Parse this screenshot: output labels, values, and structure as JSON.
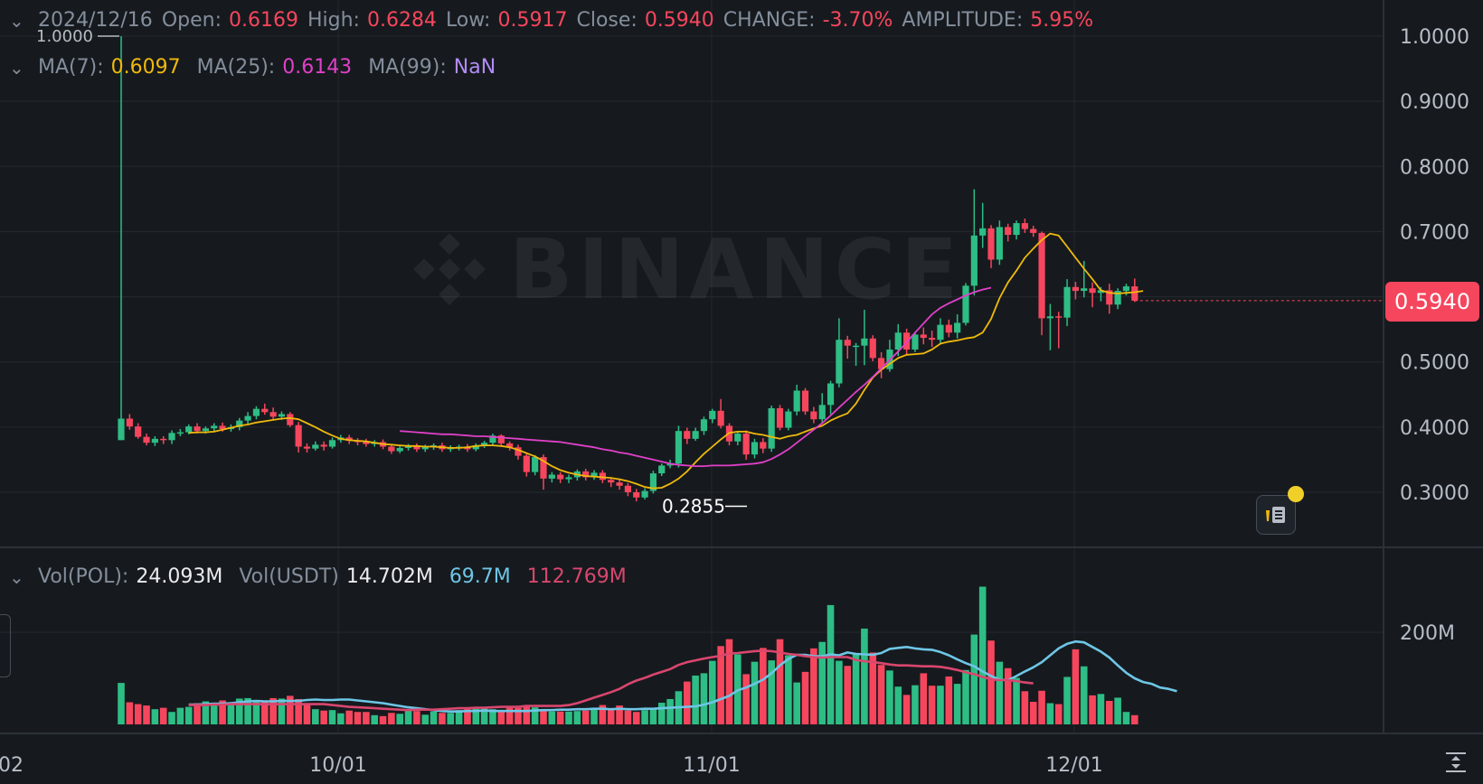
{
  "legend_top": {
    "date": "2024/12/16",
    "open_label": "Open:",
    "open": "0.6169",
    "high_label": "High:",
    "high": "0.6284",
    "low_label": "Low:",
    "low": "0.5917",
    "close_label": "Close:",
    "close": "0.5940",
    "change_label": "CHANGE:",
    "change": "-3.70%",
    "amplitude_label": "AMPLITUDE:",
    "amplitude": "5.95%"
  },
  "legend_ma": {
    "ma7_label": "MA(7):",
    "ma7": "0.6097",
    "ma25_label": "MA(25):",
    "ma25": "0.6143",
    "ma99_label": "MA(99):",
    "ma99": "NaN"
  },
  "legend_vol": {
    "vol_pol_label": "Vol(POL):",
    "vol_pol": "24.093M",
    "vol_usdt_label": "Vol(USDT)",
    "vol_usdt": "14.702M",
    "ma_vol_short": "69.7M",
    "ma_vol_long": "112.769M"
  },
  "current_price_tag": "0.5940",
  "watermark": "BINANCE",
  "colors": {
    "background": "#161a1e",
    "up": "#2ebd85",
    "down": "#f6465d",
    "ma7": "#f0b90b",
    "ma25": "#e040c8",
    "ma99": "#b28bf5",
    "vol_ma_short": "#6ec6e6",
    "vol_ma_long": "#d9466e",
    "grid": "#242830",
    "axis_text": "#b7bdc6"
  },
  "icons": [
    "chevron-down-icon",
    "note-icon",
    "expand-icon"
  ],
  "chart_data": {
    "type": "candlestick",
    "x_ticks": [
      "02",
      "10/01",
      "11/01",
      "12/01"
    ],
    "y_ticks": [
      "1.0000",
      "0.9000",
      "0.8000",
      "0.7000",
      "0.5000",
      "0.4000",
      "0.3000"
    ],
    "vol_ticks": [
      "200M"
    ],
    "ylim": [
      0.22,
      1.05
    ],
    "vol_max": 300,
    "annotations": {
      "max_label": "1.0000",
      "min_label": "0.2855"
    },
    "candles": [
      [
        0.38,
        0.413,
        1.0,
        0.38
      ],
      [
        0.413,
        0.401,
        0.42,
        0.396
      ],
      [
        0.401,
        0.385,
        0.406,
        0.382
      ],
      [
        0.385,
        0.376,
        0.39,
        0.372
      ],
      [
        0.376,
        0.382,
        0.386,
        0.371
      ],
      [
        0.382,
        0.38,
        0.386,
        0.374
      ],
      [
        0.38,
        0.391,
        0.395,
        0.374
      ],
      [
        0.391,
        0.392,
        0.397,
        0.386
      ],
      [
        0.392,
        0.401,
        0.404,
        0.389
      ],
      [
        0.401,
        0.394,
        0.406,
        0.39
      ],
      [
        0.394,
        0.398,
        0.401,
        0.39
      ],
      [
        0.398,
        0.402,
        0.406,
        0.392
      ],
      [
        0.402,
        0.397,
        0.407,
        0.393
      ],
      [
        0.397,
        0.4,
        0.404,
        0.393
      ],
      [
        0.4,
        0.41,
        0.414,
        0.395
      ],
      [
        0.41,
        0.417,
        0.423,
        0.405
      ],
      [
        0.417,
        0.428,
        0.432,
        0.412
      ],
      [
        0.428,
        0.423,
        0.436,
        0.419
      ],
      [
        0.423,
        0.416,
        0.43,
        0.411
      ],
      [
        0.416,
        0.42,
        0.424,
        0.411
      ],
      [
        0.42,
        0.403,
        0.423,
        0.4
      ],
      [
        0.403,
        0.37,
        0.408,
        0.361
      ],
      [
        0.37,
        0.367,
        0.375,
        0.361
      ],
      [
        0.367,
        0.373,
        0.378,
        0.364
      ],
      [
        0.373,
        0.37,
        0.378,
        0.364
      ],
      [
        0.37,
        0.38,
        0.384,
        0.367
      ],
      [
        0.38,
        0.384,
        0.388,
        0.376
      ],
      [
        0.384,
        0.379,
        0.388,
        0.374
      ],
      [
        0.379,
        0.378,
        0.383,
        0.372
      ],
      [
        0.378,
        0.374,
        0.382,
        0.37
      ],
      [
        0.374,
        0.377,
        0.38,
        0.37
      ],
      [
        0.377,
        0.37,
        0.381,
        0.366
      ],
      [
        0.37,
        0.363,
        0.374,
        0.359
      ],
      [
        0.363,
        0.368,
        0.372,
        0.36
      ],
      [
        0.368,
        0.371,
        0.374,
        0.364
      ],
      [
        0.371,
        0.366,
        0.375,
        0.362
      ],
      [
        0.366,
        0.37,
        0.373,
        0.362
      ],
      [
        0.37,
        0.372,
        0.375,
        0.365
      ],
      [
        0.372,
        0.366,
        0.376,
        0.362
      ],
      [
        0.366,
        0.369,
        0.372,
        0.362
      ],
      [
        0.369,
        0.37,
        0.373,
        0.364
      ],
      [
        0.37,
        0.366,
        0.374,
        0.362
      ],
      [
        0.366,
        0.372,
        0.375,
        0.363
      ],
      [
        0.372,
        0.376,
        0.379,
        0.368
      ],
      [
        0.376,
        0.387,
        0.39,
        0.372
      ],
      [
        0.387,
        0.375,
        0.389,
        0.37
      ],
      [
        0.375,
        0.369,
        0.378,
        0.364
      ],
      [
        0.369,
        0.356,
        0.373,
        0.35
      ],
      [
        0.356,
        0.331,
        0.36,
        0.324
      ],
      [
        0.331,
        0.354,
        0.357,
        0.326
      ],
      [
        0.354,
        0.321,
        0.358,
        0.304
      ],
      [
        0.321,
        0.327,
        0.331,
        0.315
      ],
      [
        0.327,
        0.32,
        0.331,
        0.314
      ],
      [
        0.32,
        0.323,
        0.327,
        0.314
      ],
      [
        0.323,
        0.332,
        0.335,
        0.318
      ],
      [
        0.332,
        0.323,
        0.336,
        0.318
      ],
      [
        0.323,
        0.33,
        0.334,
        0.319
      ],
      [
        0.33,
        0.319,
        0.334,
        0.314
      ],
      [
        0.319,
        0.315,
        0.323,
        0.308
      ],
      [
        0.315,
        0.31,
        0.319,
        0.304
      ],
      [
        0.31,
        0.3,
        0.314,
        0.294
      ],
      [
        0.3,
        0.292,
        0.305,
        0.286
      ],
      [
        0.292,
        0.302,
        0.306,
        0.289
      ],
      [
        0.302,
        0.329,
        0.333,
        0.298
      ],
      [
        0.329,
        0.341,
        0.344,
        0.325
      ],
      [
        0.341,
        0.344,
        0.35,
        0.337
      ],
      [
        0.344,
        0.394,
        0.402,
        0.338
      ],
      [
        0.394,
        0.382,
        0.399,
        0.374
      ],
      [
        0.382,
        0.394,
        0.399,
        0.379
      ],
      [
        0.394,
        0.412,
        0.416,
        0.388
      ],
      [
        0.412,
        0.425,
        0.428,
        0.406
      ],
      [
        0.425,
        0.402,
        0.443,
        0.398
      ],
      [
        0.402,
        0.378,
        0.406,
        0.372
      ],
      [
        0.378,
        0.39,
        0.394,
        0.372
      ],
      [
        0.39,
        0.358,
        0.395,
        0.35
      ],
      [
        0.358,
        0.377,
        0.382,
        0.352
      ],
      [
        0.377,
        0.367,
        0.383,
        0.36
      ],
      [
        0.367,
        0.429,
        0.433,
        0.362
      ],
      [
        0.429,
        0.399,
        0.434,
        0.395
      ],
      [
        0.399,
        0.424,
        0.428,
        0.395
      ],
      [
        0.424,
        0.456,
        0.465,
        0.418
      ],
      [
        0.456,
        0.424,
        0.46,
        0.419
      ],
      [
        0.424,
        0.412,
        0.431,
        0.406
      ],
      [
        0.412,
        0.434,
        0.452,
        0.407
      ],
      [
        0.434,
        0.467,
        0.471,
        0.42
      ],
      [
        0.467,
        0.534,
        0.567,
        0.461
      ],
      [
        0.534,
        0.525,
        0.54,
        0.505
      ],
      [
        0.525,
        0.525,
        0.529,
        0.494
      ],
      [
        0.525,
        0.536,
        0.58,
        0.495
      ],
      [
        0.536,
        0.506,
        0.541,
        0.501
      ],
      [
        0.506,
        0.489,
        0.515,
        0.475
      ],
      [
        0.489,
        0.519,
        0.534,
        0.485
      ],
      [
        0.519,
        0.545,
        0.558,
        0.509
      ],
      [
        0.545,
        0.519,
        0.551,
        0.51
      ],
      [
        0.519,
        0.542,
        0.546,
        0.515
      ],
      [
        0.542,
        0.537,
        0.553,
        0.527
      ],
      [
        0.537,
        0.534,
        0.548,
        0.523
      ],
      [
        0.534,
        0.557,
        0.567,
        0.529
      ],
      [
        0.557,
        0.545,
        0.565,
        0.538
      ],
      [
        0.545,
        0.56,
        0.573,
        0.536
      ],
      [
        0.56,
        0.617,
        0.621,
        0.556
      ],
      [
        0.617,
        0.694,
        0.765,
        0.602
      ],
      [
        0.694,
        0.705,
        0.744,
        0.675
      ],
      [
        0.705,
        0.657,
        0.71,
        0.644
      ],
      [
        0.657,
        0.707,
        0.717,
        0.649
      ],
      [
        0.707,
        0.695,
        0.712,
        0.685
      ],
      [
        0.695,
        0.713,
        0.717,
        0.688
      ],
      [
        0.713,
        0.704,
        0.72,
        0.698
      ],
      [
        0.704,
        0.698,
        0.709,
        0.692
      ],
      [
        0.698,
        0.567,
        0.7,
        0.541
      ],
      [
        0.567,
        0.57,
        0.589,
        0.518
      ],
      [
        0.57,
        0.568,
        0.577,
        0.521
      ],
      [
        0.568,
        0.615,
        0.627,
        0.555
      ],
      [
        0.615,
        0.609,
        0.623,
        0.596
      ],
      [
        0.609,
        0.613,
        0.655,
        0.599
      ],
      [
        0.613,
        0.606,
        0.622,
        0.584
      ],
      [
        0.606,
        0.61,
        0.615,
        0.593
      ],
      [
        0.61,
        0.588,
        0.62,
        0.574
      ],
      [
        0.588,
        0.609,
        0.613,
        0.581
      ],
      [
        0.609,
        0.616,
        0.62,
        0.602
      ],
      [
        0.616,
        0.594,
        0.628,
        0.592
      ]
    ],
    "volume": [
      90,
      48,
      44,
      41,
      33,
      36,
      27,
      36,
      38,
      46,
      50,
      47,
      52,
      48,
      56,
      57,
      53,
      51,
      57,
      56,
      62,
      55,
      43,
      33,
      30,
      31,
      24,
      30,
      27,
      27,
      20,
      18,
      25,
      23,
      30,
      29,
      21,
      28,
      25,
      25,
      31,
      33,
      34,
      38,
      33,
      27,
      40,
      36,
      38,
      37,
      33,
      28,
      28,
      28,
      29,
      30,
      34,
      42,
      32,
      41,
      30,
      27,
      31,
      33,
      47,
      55,
      72,
      93,
      106,
      111,
      138,
      170,
      185,
      152,
      109,
      136,
      166,
      139,
      185,
      150,
      91,
      114,
      165,
      179,
      259,
      138,
      127,
      155,
      208,
      156,
      129,
      117,
      82,
      64,
      85,
      111,
      84,
      84,
      104,
      88,
      118,
      195,
      299,
      182,
      136,
      122,
      101,
      72,
      49,
      73,
      46,
      44,
      103,
      163,
      126,
      63,
      66,
      51,
      58,
      27,
      20
    ],
    "ma_vol_short_values": [
      43,
      43,
      44,
      45,
      45,
      46,
      48,
      50,
      51,
      50,
      50,
      51,
      51,
      51,
      53,
      54,
      53,
      53,
      54,
      54,
      52,
      50,
      48,
      46,
      43,
      40,
      37,
      35,
      33,
      31,
      29,
      28,
      28,
      29,
      29,
      30,
      29,
      29,
      29,
      29,
      29,
      30,
      31,
      31,
      32,
      32,
      33,
      33,
      34,
      34,
      33,
      34,
      33,
      33,
      34,
      34,
      35,
      36,
      37,
      38,
      39,
      43,
      48,
      55,
      62,
      74,
      80,
      88,
      97,
      111,
      128,
      142,
      151,
      151,
      148,
      148,
      152,
      150,
      156,
      153,
      152,
      151,
      155,
      164,
      166,
      168,
      165,
      163,
      162,
      157,
      150,
      141,
      133,
      126,
      115,
      105,
      97,
      96,
      105,
      115,
      124,
      135,
      150,
      165,
      175,
      180,
      178,
      168,
      158,
      145,
      128,
      112,
      100,
      92,
      88,
      80,
      77,
      72
    ],
    "ma_vol_long_values": [
      42,
      42,
      42,
      43,
      43,
      44,
      44,
      44,
      44,
      44,
      44,
      44,
      44,
      44,
      44,
      44,
      44,
      42,
      40,
      38,
      37,
      36,
      35,
      34,
      33,
      32,
      31,
      32,
      32,
      32,
      33,
      34,
      35,
      35,
      36,
      36,
      37,
      38,
      38,
      38,
      40,
      40,
      40,
      40,
      40,
      42,
      46,
      52,
      58,
      64,
      70,
      77,
      87,
      95,
      101,
      108,
      114,
      120,
      129,
      135,
      139,
      143,
      146,
      149,
      154,
      155,
      157,
      159,
      160,
      159,
      156,
      153,
      151,
      148,
      146,
      145,
      146,
      146,
      146,
      140,
      137,
      135,
      133,
      130,
      128,
      128,
      127,
      126,
      126,
      125,
      122,
      118,
      113,
      109,
      103,
      98,
      96,
      96,
      94,
      91,
      89
    ],
    "ma7_values": [
      0.391,
      0.392,
      0.392,
      0.393,
      0.396,
      0.399,
      0.402,
      0.404,
      0.407,
      0.409,
      0.411,
      0.413,
      0.414,
      0.412,
      0.406,
      0.4,
      0.393,
      0.387,
      0.382,
      0.38,
      0.379,
      0.378,
      0.376,
      0.374,
      0.373,
      0.372,
      0.371,
      0.371,
      0.37,
      0.37,
      0.369,
      0.368,
      0.368,
      0.369,
      0.371,
      0.372,
      0.372,
      0.371,
      0.369,
      0.365,
      0.36,
      0.355,
      0.348,
      0.34,
      0.334,
      0.33,
      0.327,
      0.325,
      0.324,
      0.323,
      0.322,
      0.32,
      0.317,
      0.313,
      0.308,
      0.306,
      0.307,
      0.313,
      0.321,
      0.332,
      0.346,
      0.359,
      0.37,
      0.381,
      0.391,
      0.393,
      0.393,
      0.39,
      0.388,
      0.385,
      0.382,
      0.386,
      0.388,
      0.393,
      0.398,
      0.402,
      0.41,
      0.416,
      0.421,
      0.436,
      0.457,
      0.476,
      0.488,
      0.497,
      0.506,
      0.511,
      0.512,
      0.513,
      0.519,
      0.528,
      0.531,
      0.533,
      0.536,
      0.538,
      0.545,
      0.566,
      0.598,
      0.622,
      0.64,
      0.66,
      0.674,
      0.687,
      0.697,
      0.694,
      0.677,
      0.66,
      0.643,
      0.627,
      0.61,
      0.606,
      0.605,
      0.606,
      0.607,
      0.609
    ],
    "ma25_values": [
      0.394,
      0.393,
      0.392,
      0.391,
      0.39,
      0.389,
      0.389,
      0.388,
      0.387,
      0.386,
      0.386,
      0.385,
      0.384,
      0.383,
      0.382,
      0.381,
      0.38,
      0.379,
      0.378,
      0.377,
      0.375,
      0.373,
      0.371,
      0.369,
      0.366,
      0.364,
      0.361,
      0.359,
      0.356,
      0.353,
      0.35,
      0.347,
      0.344,
      0.342,
      0.341,
      0.34,
      0.34,
      0.341,
      0.341,
      0.341,
      0.342,
      0.343,
      0.344,
      0.346,
      0.351,
      0.358,
      0.366,
      0.376,
      0.386,
      0.396,
      0.406,
      0.418,
      0.43,
      0.442,
      0.454,
      0.465,
      0.477,
      0.49,
      0.503,
      0.516,
      0.53,
      0.545,
      0.559,
      0.573,
      0.583,
      0.59,
      0.596,
      0.602,
      0.607,
      0.611,
      0.614
    ]
  }
}
